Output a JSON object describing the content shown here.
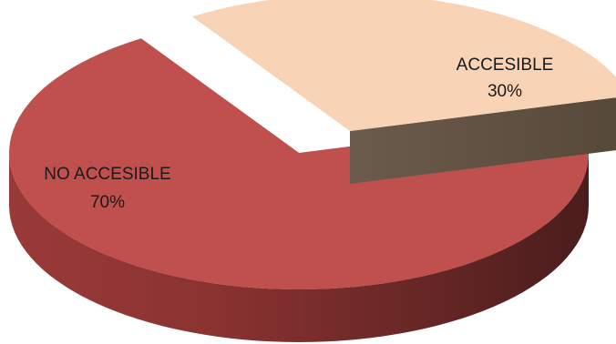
{
  "chart_data": {
    "type": "pie",
    "style": "3d-exploded",
    "title": "",
    "legend": "none",
    "slices": [
      {
        "label": "ACCESIBLE",
        "value": 30,
        "value_label": "30%",
        "top_color": "#f8d3b6",
        "side_color": "#625447",
        "exploded": true
      },
      {
        "label": "NO ACCESIBLE",
        "value": 70,
        "value_label": "70%",
        "top_color": "#c0504d",
        "side_color": "#7a2b2a",
        "exploded": false
      }
    ]
  }
}
